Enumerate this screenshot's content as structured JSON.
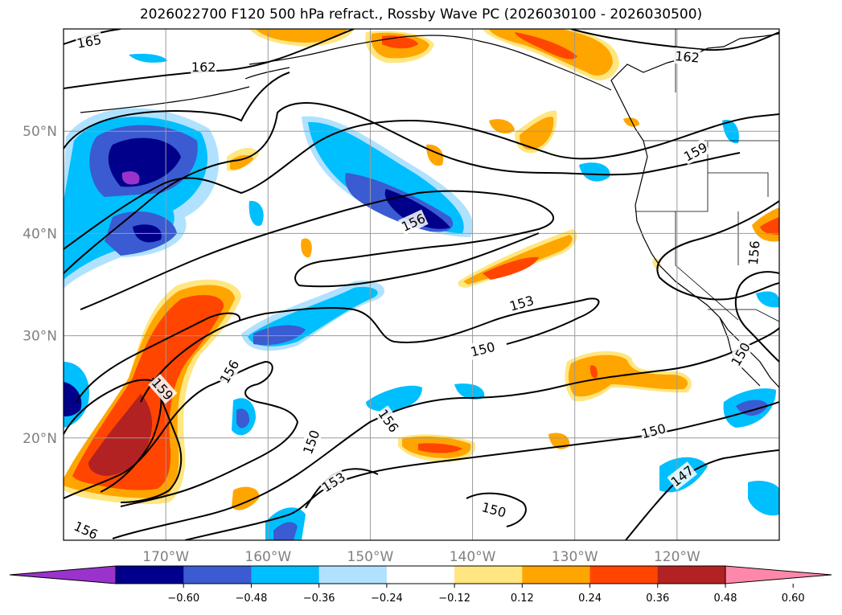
{
  "title": "2026022700 F120 500 hPa refract., Rossby Wave PC (2026030100 - 2026030500)",
  "map": {
    "lon_range": [
      -180,
      -110
    ],
    "lat_range": [
      10,
      60
    ],
    "lat_ticks": [
      {
        "value": 20,
        "label": "20°N"
      },
      {
        "value": 30,
        "label": "30°N"
      },
      {
        "value": 40,
        "label": "40°N"
      },
      {
        "value": 50,
        "label": "50°N"
      }
    ],
    "lon_ticks": [
      {
        "value": -170,
        "label": "170°W"
      },
      {
        "value": -160,
        "label": "160°W"
      },
      {
        "value": -150,
        "label": "150°W"
      },
      {
        "value": -140,
        "label": "140°W"
      },
      {
        "value": -130,
        "label": "130°W"
      },
      {
        "value": -120,
        "label": "120°W"
      }
    ],
    "grid": true,
    "contour_labels": [
      {
        "text": "165",
        "lon": -177.5,
        "lat": 58.8,
        "rot": -10
      },
      {
        "text": "162",
        "lon": -166.3,
        "lat": 56.3,
        "rot": 0
      },
      {
        "text": "162",
        "lon": -119.0,
        "lat": 57.3,
        "rot": 5
      },
      {
        "text": "159",
        "lon": -118.2,
        "lat": 48.0,
        "rot": -28
      },
      {
        "text": "156",
        "lon": -145.8,
        "lat": 41.1,
        "rot": -25
      },
      {
        "text": "156",
        "lon": -112.5,
        "lat": 38.1,
        "rot": -85
      },
      {
        "text": "153",
        "lon": -135.2,
        "lat": 33.2,
        "rot": -16
      },
      {
        "text": "150",
        "lon": -139.0,
        "lat": 28.7,
        "rot": -14
      },
      {
        "text": "150",
        "lon": -113.8,
        "lat": 28.2,
        "rot": -60
      },
      {
        "text": "156",
        "lon": -163.8,
        "lat": 26.5,
        "rot": -60
      },
      {
        "text": "159",
        "lon": -170.3,
        "lat": 24.8,
        "rot": 48
      },
      {
        "text": "156",
        "lon": -148.2,
        "lat": 21.7,
        "rot": 55
      },
      {
        "text": "150",
        "lon": -155.8,
        "lat": 19.6,
        "rot": -70
      },
      {
        "text": "150",
        "lon": -122.3,
        "lat": 20.7,
        "rot": -15
      },
      {
        "text": "153",
        "lon": -153.6,
        "lat": 15.7,
        "rot": -32
      },
      {
        "text": "147",
        "lon": -119.5,
        "lat": 16.3,
        "rot": -38
      },
      {
        "text": "150",
        "lon": -137.9,
        "lat": 13.0,
        "rot": 15
      },
      {
        "text": "156",
        "lon": -177.8,
        "lat": 11.0,
        "rot": 25
      }
    ]
  },
  "colorbar": {
    "levels": [
      -0.6,
      -0.48,
      -0.36,
      -0.24,
      -0.12,
      0.12,
      0.24,
      0.36,
      0.48,
      0.6
    ],
    "labels": [
      "−0.60",
      "−0.48",
      "−0.36",
      "−0.24",
      "−0.12",
      "0.12",
      "0.24",
      "0.36",
      "0.48",
      "0.60"
    ],
    "colors": [
      "#9933cc",
      "#00008b",
      "#3a5bd1",
      "#00bfff",
      "#b0e2ff",
      "#ffffff",
      "#ffe680",
      "#ffa500",
      "#ff4500",
      "#b22222",
      "#ff88aa"
    ],
    "extend": "both"
  }
}
